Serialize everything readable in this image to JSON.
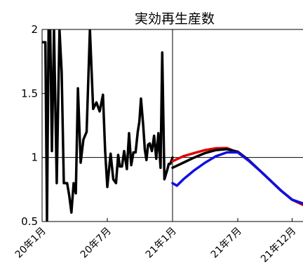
{
  "chart_data": {
    "type": "line",
    "title": "実効再生産数",
    "xlabel": "",
    "ylabel": "",
    "x_unit": "months since 2020-01",
    "xlim": [
      0,
      24
    ],
    "ylim": [
      0.5,
      2
    ],
    "yticks": [
      {
        "value": 0.5,
        "label": "0.5"
      },
      {
        "value": 1,
        "label": "1"
      },
      {
        "value": 1.5,
        "label": "1.5"
      },
      {
        "value": 2,
        "label": "2"
      }
    ],
    "xticks": [
      {
        "value": 0,
        "label": "20年1月"
      },
      {
        "value": 6,
        "label": "20年7月"
      },
      {
        "value": 12,
        "label": "21年1月"
      },
      {
        "value": 18,
        "label": "21年7月"
      },
      {
        "value": 23,
        "label": "21年12月"
      }
    ],
    "reference_lines": [
      {
        "axis": "y",
        "value": 1
      },
      {
        "axis": "x",
        "value": 12
      }
    ],
    "grid": false,
    "legend": "none",
    "series": [
      {
        "name": "",
        "color": "#000000",
        "x": [
          0,
          0.3,
          0.45,
          0.6,
          0.75,
          0.9,
          1.1,
          1.35,
          1.6,
          1.8,
          2.0,
          2.3,
          2.5,
          2.7,
          2.9,
          3.1,
          3.3,
          3.55,
          3.8,
          4.1,
          4.4,
          4.7,
          5.0,
          5.3,
          5.6,
          5.8,
          6.0,
          6.3,
          6.55,
          6.8,
          7.0,
          7.15,
          7.35,
          7.55,
          7.8,
          8.0,
          8.2,
          8.4,
          8.6,
          8.8,
          8.95,
          9.1,
          9.3,
          9.45,
          9.6,
          9.75,
          9.9,
          10.1,
          10.3,
          10.5,
          10.7,
          10.9,
          11.05,
          11.25,
          11.5,
          11.65,
          11.8,
          12.0
        ],
        "y": [
          1.9,
          1.9,
          0.5,
          2.0,
          2.0,
          1.05,
          2.0,
          0.8,
          2.0,
          1.67,
          0.8,
          0.8,
          0.7,
          0.57,
          0.8,
          0.72,
          1.54,
          0.96,
          1.14,
          1.2,
          2.0,
          1.38,
          1.43,
          1.36,
          1.49,
          1.05,
          0.77,
          1.03,
          0.83,
          0.8,
          1.02,
          0.93,
          0.93,
          1.05,
          0.91,
          1.19,
          0.94,
          1.04,
          1.04,
          1.2,
          1.28,
          1.46,
          1.25,
          1.06,
          0.98,
          1.1,
          1.11,
          1.05,
          1.17,
          0.99,
          1.19,
          0.92,
          1.82,
          0.83,
          0.9,
          0.95,
          0.95,
          1.0
        ]
      },
      {
        "name": "",
        "color": "#e00000",
        "x": [
          12.0,
          13.0,
          14.0,
          15.0,
          16.0,
          17.0,
          18.0,
          19.0,
          20.0,
          21.0,
          22.0,
          23.0,
          24.0
        ],
        "y": [
          0.97,
          1.01,
          1.035,
          1.058,
          1.072,
          1.073,
          1.04,
          0.975,
          0.9,
          0.82,
          0.74,
          0.67,
          0.63
        ]
      },
      {
        "name": "",
        "color": "#000000",
        "x": [
          12.0,
          13.0,
          14.0,
          15.0,
          16.0,
          17.0,
          18.0,
          19.0,
          20.0,
          21.0,
          22.0,
          23.0,
          24.0
        ],
        "y": [
          0.92,
          0.96,
          1.0,
          1.035,
          1.058,
          1.065,
          1.045,
          0.98,
          0.9,
          0.82,
          0.74,
          0.67,
          0.64
        ]
      },
      {
        "name": "",
        "color": "#1010e0",
        "x": [
          12.0,
          12.4,
          13.0,
          14.0,
          15.0,
          16.0,
          17.0,
          18.0,
          19.0,
          20.0,
          21.0,
          22.0,
          23.0,
          24.0
        ],
        "y": [
          0.8,
          0.78,
          0.83,
          0.9,
          0.96,
          1.01,
          1.04,
          1.04,
          0.975,
          0.9,
          0.82,
          0.74,
          0.67,
          0.64
        ]
      }
    ]
  }
}
